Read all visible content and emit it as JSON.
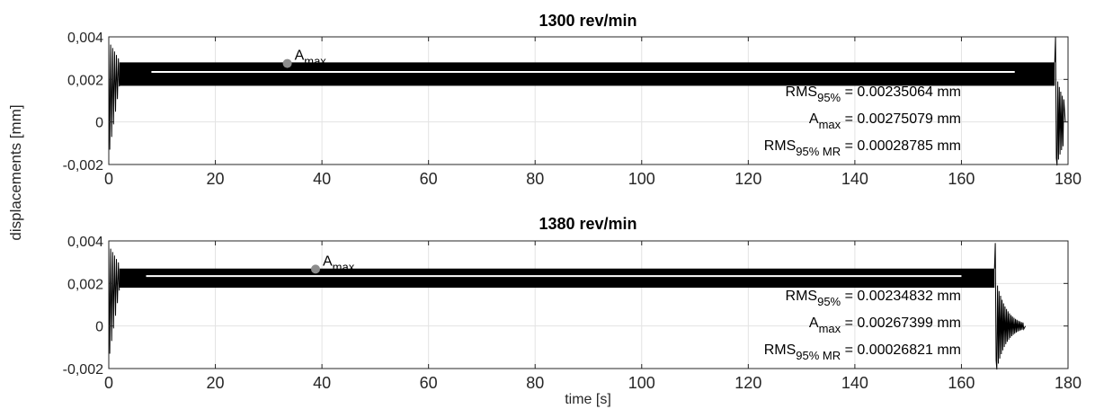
{
  "figure": {
    "ylabel": "displacements [mm]",
    "xlabel": "time [s]"
  },
  "chart_data": [
    {
      "type": "line",
      "title": "1300 rev/min",
      "xlim": [
        0,
        180
      ],
      "ylim": [
        -0.002,
        0.004
      ],
      "xticks": [
        "0",
        "20",
        "40",
        "60",
        "80",
        "100",
        "120",
        "140",
        "160",
        "180"
      ],
      "yticks": [
        "-0,002",
        "0",
        "0,002",
        "0,004"
      ],
      "grid": true,
      "series": [
        {
          "role": "displacement signal",
          "color": "#000000",
          "start_transient_end": 2,
          "steady_band": [
            0.0017,
            0.0028
          ],
          "steady_until": 177.5,
          "spike_peak": 0.004,
          "spike_min": -0.0017,
          "end": 179.5
        },
        {
          "role": "RMS 95% level",
          "color": "#ffffff",
          "x": [
            8,
            170
          ],
          "y": 0.00235064
        }
      ],
      "marker": {
        "label": "A",
        "label_sub": "max",
        "x": 33.5,
        "y": 0.00275079,
        "color": "#8c8c8c"
      },
      "annotations": [
        {
          "main": "RMS",
          "sub": "95%",
          "value": " = 0.00235064 mm"
        },
        {
          "main": "A",
          "sub": "max",
          "value": " = 0.00275079 mm"
        },
        {
          "main": "RMS",
          "sub": "95% MR",
          "value": " = 0.00028785 mm"
        }
      ]
    },
    {
      "type": "line",
      "title": "1380 rev/min",
      "xlim": [
        0,
        180
      ],
      "ylim": [
        -0.002,
        0.004
      ],
      "xticks": [
        "0",
        "20",
        "40",
        "60",
        "80",
        "100",
        "120",
        "140",
        "160",
        "180"
      ],
      "yticks": [
        "-0,002",
        "0",
        "0,002",
        "0,004"
      ],
      "grid": true,
      "series": [
        {
          "role": "displacement signal",
          "color": "#000000",
          "start_transient_end": 2,
          "steady_band": [
            0.0018,
            0.0027
          ],
          "steady_until": 166.2,
          "spike_peak": 0.0039,
          "spike_min": -0.0016,
          "end": 172
        },
        {
          "role": "RMS 95% level",
          "color": "#ffffff",
          "x": [
            7,
            160
          ],
          "y": 0.00234832
        }
      ],
      "marker": {
        "label": "A",
        "label_sub": "max",
        "x": 38.8,
        "y": 0.00267399,
        "color": "#8c8c8c"
      },
      "annotations": [
        {
          "main": "RMS",
          "sub": "95%",
          "value": " = 0.00234832 mm"
        },
        {
          "main": "A",
          "sub": "max",
          "value": " = 0.00267399 mm"
        },
        {
          "main": "RMS",
          "sub": "95% MR",
          "value": " = 0.00026821 mm"
        }
      ]
    }
  ]
}
